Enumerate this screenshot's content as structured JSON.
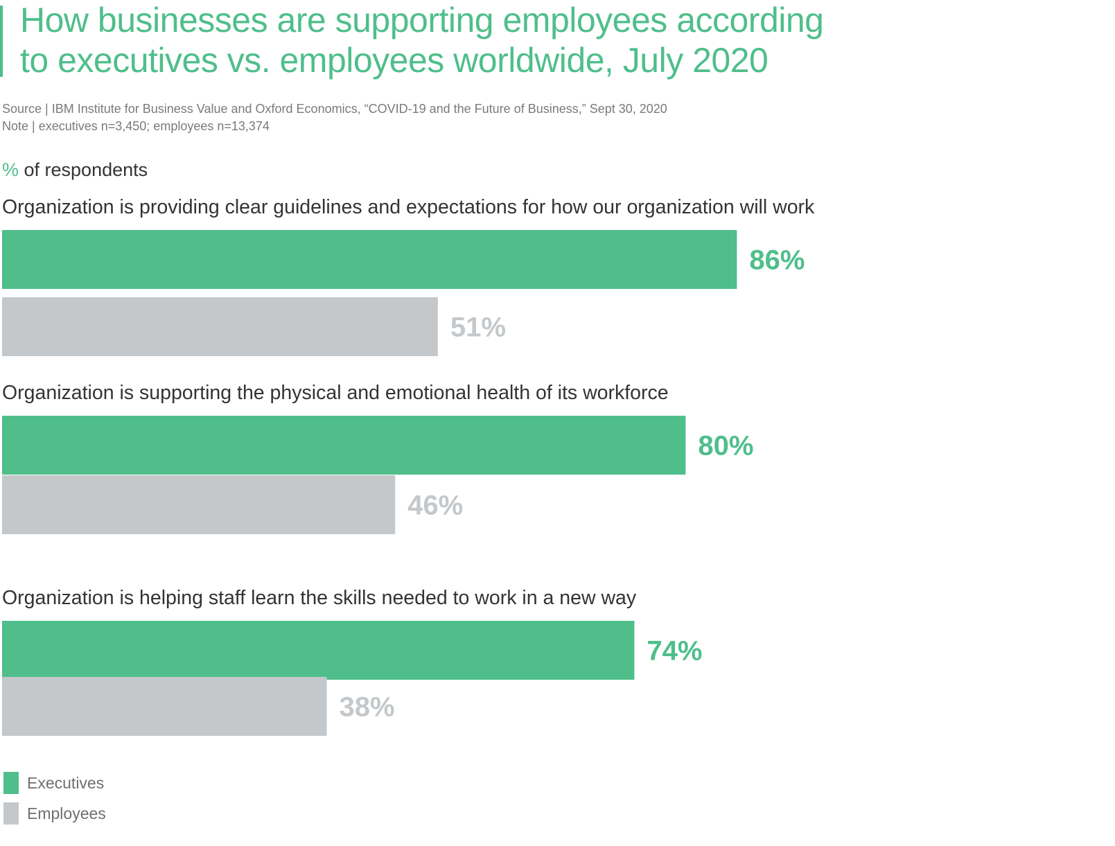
{
  "title": {
    "line1": "How businesses are supporting employees according",
    "line2": "to executives vs. employees worldwide, July 2020"
  },
  "source": "Source | IBM Institute for Business Value and Oxford Economics, “COVID-19 and the Future of Business,” Sept 30, 2020",
  "note": "Note | executives n=3,450; employees n=13,374",
  "unit": {
    "symbol": "%",
    "text": " of respondents"
  },
  "colors": {
    "executives": "#4fbe8b",
    "employees": "#c4c8cb"
  },
  "chart_data": {
    "type": "bar",
    "orientation": "horizontal",
    "title": "How businesses are supporting employees according to executives vs. employees worldwide, July 2020",
    "ylabel": "% of respondents",
    "xlim": [
      0,
      100
    ],
    "grid": false,
    "legend_position": "bottom-left",
    "categories": [
      "Organization is providing clear guidelines and expectations for how our organization will work",
      "Organization is supporting the physical and emotional health of its workforce",
      "Organization is helping staff learn the skills needed to work in a new way"
    ],
    "series": [
      {
        "name": "Executives",
        "values": [
          86,
          80,
          74
        ],
        "labels": [
          "86%",
          "80%",
          "74%"
        ]
      },
      {
        "name": "Employees",
        "values": [
          51,
          46,
          38
        ],
        "labels": [
          "51%",
          "46%",
          "38%"
        ]
      }
    ]
  },
  "legend": [
    {
      "name": "Executives",
      "color": "#4fbe8b"
    },
    {
      "name": "Employees",
      "color": "#c4c8cb"
    }
  ]
}
